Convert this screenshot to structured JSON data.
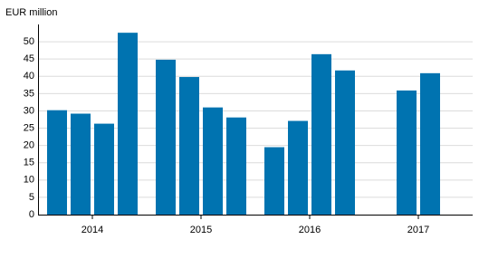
{
  "chart_data": {
    "type": "bar",
    "y_label": "EUR million",
    "categories": [
      "2014",
      "2015",
      "2016",
      "2017"
    ],
    "series": [
      {
        "color": "#0073b0",
        "values": [
          30.2,
          44.8,
          19.5,
          null
        ]
      },
      {
        "color": "#0073b0",
        "values": [
          29.2,
          39.8,
          27.1,
          35.9
        ]
      },
      {
        "color": "#0073b0",
        "values": [
          26.3,
          31,
          46.4,
          40.9
        ]
      },
      {
        "color": "#0073b0",
        "values": [
          52.6,
          28.1,
          41.7,
          null
        ]
      }
    ],
    "ylim": [
      0,
      55
    ],
    "yticks": [
      0,
      5,
      10,
      15,
      20,
      25,
      30,
      35,
      40,
      45,
      50
    ],
    "grid": true
  }
}
